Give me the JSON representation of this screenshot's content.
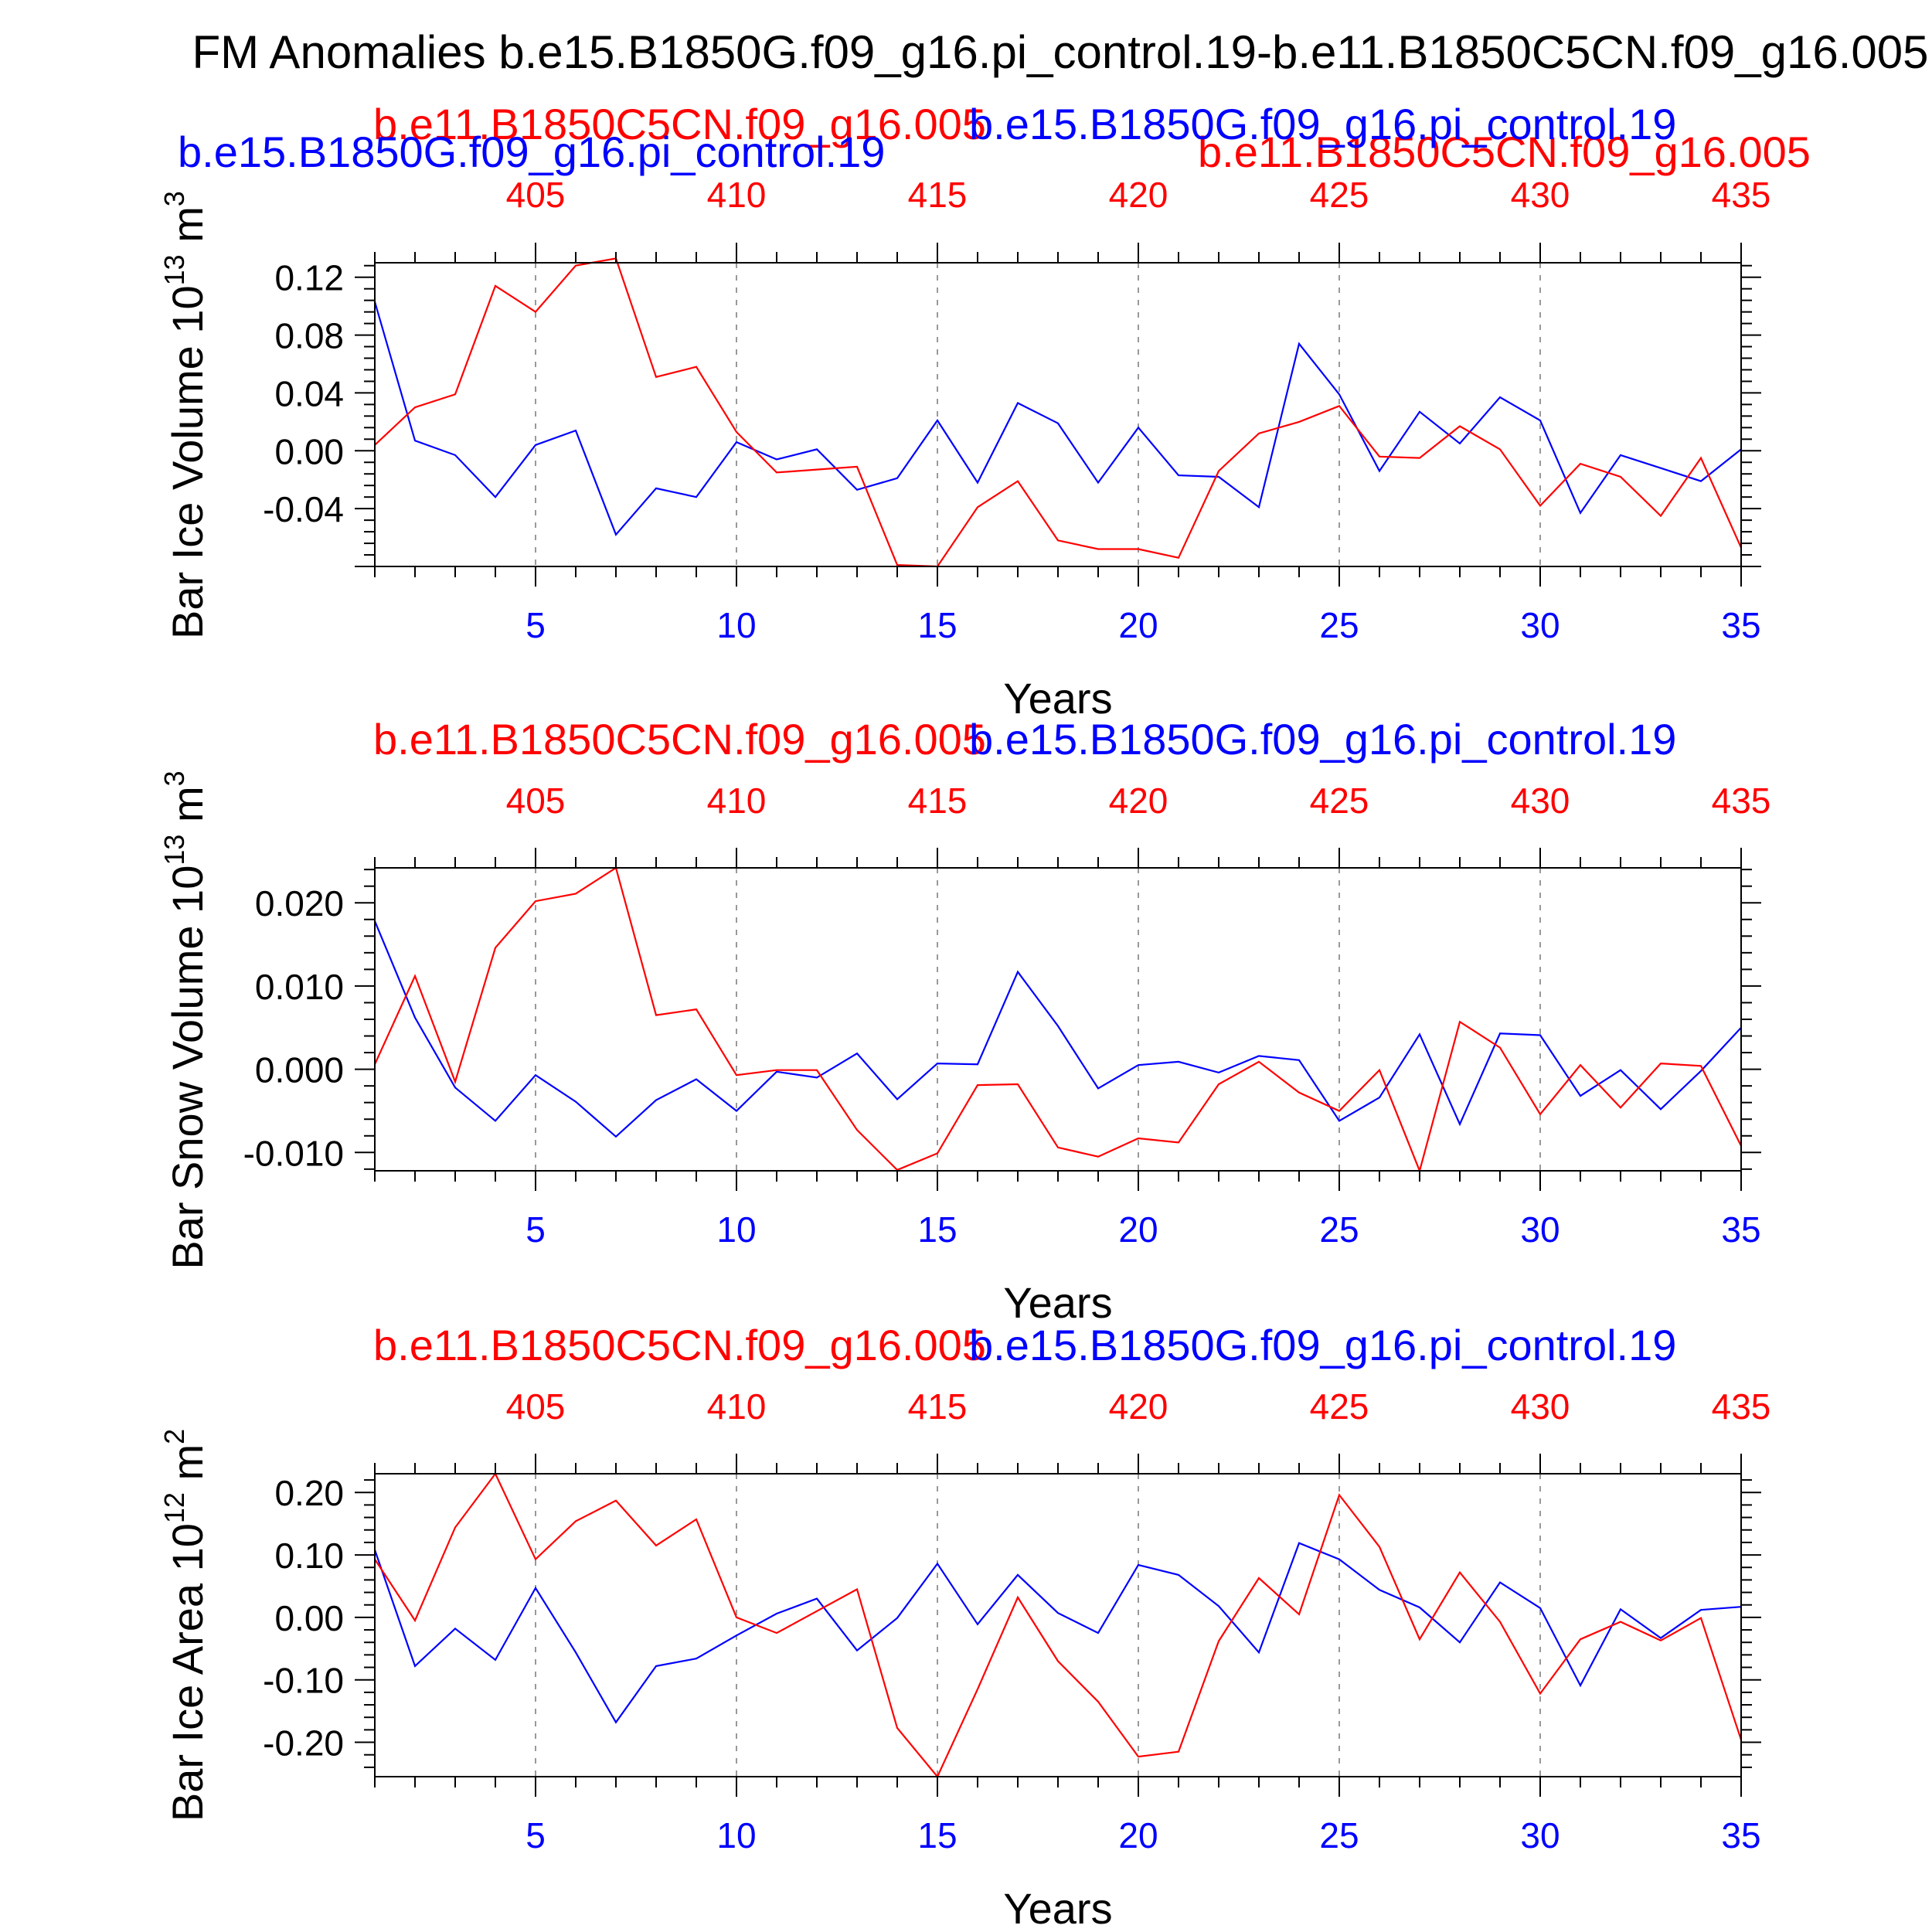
{
  "title": "FM Anomalies b.e15.B1850G.f09_g16.pi_control.19-b.e11.B1850C5CN.f09_g16.005",
  "colors": {
    "blue": "#0000ff",
    "red": "#ff0000",
    "axis": "#000000",
    "grid": "#999999"
  },
  "first_panel_extra_label": "b.e11.B1850C5CN.f09_g16.005",
  "chart_data": [
    {
      "type": "line",
      "red_label": "b.e11.B1850C5CN.f09_g16.005",
      "blue_label": "b.e15.B1850G.f09_g16.pi_control.19",
      "ylabel": "Bar Ice Volume 10",
      "yunit_exp": "13",
      "yunit_tail": " m",
      "yunit_sup": "3",
      "xlabel": "Years",
      "xlim": [
        1,
        35
      ],
      "ylim": [
        -0.08,
        0.13
      ],
      "yticks": [
        -0.04,
        0.0,
        0.04,
        0.08,
        0.12
      ],
      "ytick_labels": [
        "-0.04",
        "0.00",
        "0.04",
        "0.08",
        "0.12"
      ],
      "xticks": [
        5,
        10,
        15,
        20,
        25,
        30,
        35
      ],
      "xtick_labels": [
        "5",
        "10",
        "15",
        "20",
        "25",
        "30",
        "35"
      ],
      "top_ticks": [
        5,
        10,
        15,
        20,
        25,
        30,
        35
      ],
      "top_tick_labels": [
        "405",
        "410",
        "415",
        "420",
        "425",
        "430",
        "435"
      ],
      "grid_x": [
        5,
        10,
        15,
        20,
        25,
        30
      ],
      "series": [
        {
          "name": "b.e15.B1850G.f09_g16.pi_control.19",
          "color": "#0000ff",
          "x": [
            1,
            2,
            3,
            4,
            5,
            6,
            7,
            8,
            9,
            10,
            11,
            12,
            13,
            14,
            15,
            16,
            17,
            18,
            19,
            20,
            21,
            22,
            23,
            24,
            25,
            26,
            27,
            28,
            29,
            30,
            31,
            32,
            33,
            34,
            35
          ],
          "y": [
            0.103,
            0.007,
            -0.003,
            -0.032,
            0.004,
            0.014,
            -0.058,
            -0.026,
            -0.032,
            0.006,
            -0.006,
            0.001,
            -0.027,
            -0.019,
            0.021,
            -0.022,
            0.033,
            0.019,
            -0.022,
            0.016,
            -0.017,
            -0.018,
            -0.039,
            0.074,
            0.039,
            -0.014,
            0.027,
            0.005,
            0.037,
            0.021,
            -0.043,
            -0.003,
            -0.012,
            -0.021,
            0.001
          ]
        },
        {
          "name": "b.e11.B1850C5CN.f09_g16.005",
          "color": "#ff0000",
          "x": [
            1,
            2,
            3,
            4,
            5,
            6,
            7,
            8,
            9,
            10,
            11,
            12,
            13,
            14,
            15,
            16,
            17,
            18,
            19,
            20,
            21,
            22,
            23,
            24,
            25,
            26,
            27,
            28,
            29,
            30,
            31,
            32,
            33,
            34,
            35
          ],
          "y": [
            0.004,
            0.03,
            0.039,
            0.114,
            0.096,
            0.128,
            0.133,
            0.051,
            0.058,
            0.013,
            -0.015,
            -0.013,
            -0.011,
            -0.079,
            -0.08,
            -0.039,
            -0.021,
            -0.062,
            -0.068,
            -0.068,
            -0.074,
            -0.014,
            0.012,
            0.02,
            0.031,
            -0.004,
            -0.005,
            0.017,
            0.001,
            -0.038,
            -0.009,
            -0.018,
            -0.045,
            -0.005,
            -0.067
          ]
        }
      ]
    },
    {
      "type": "line",
      "red_label": "b.e11.B1850C5CN.f09_g16.005",
      "blue_label": "b.e15.B1850G.f09_g16.pi_control.19",
      "ylabel": "Bar Snow Volume 10",
      "yunit_exp": "13",
      "yunit_tail": " m",
      "yunit_sup": "3",
      "xlabel": "Years",
      "xlim": [
        1,
        35
      ],
      "ylim": [
        -0.0122,
        0.0242
      ],
      "yticks": [
        -0.01,
        0.0,
        0.01,
        0.02
      ],
      "ytick_labels": [
        "-0.010",
        "0.000",
        "0.010",
        "0.020"
      ],
      "xticks": [
        5,
        10,
        15,
        20,
        25,
        30,
        35
      ],
      "xtick_labels": [
        "5",
        "10",
        "15",
        "20",
        "25",
        "30",
        "35"
      ],
      "top_ticks": [
        5,
        10,
        15,
        20,
        25,
        30,
        35
      ],
      "top_tick_labels": [
        "405",
        "410",
        "415",
        "420",
        "425",
        "430",
        "435"
      ],
      "grid_x": [
        5,
        10,
        15,
        20,
        25,
        30
      ],
      "series": [
        {
          "name": "b.e15.B1850G.f09_g16.pi_control.19",
          "color": "#0000ff",
          "x": [
            1,
            2,
            3,
            4,
            5,
            6,
            7,
            8,
            9,
            10,
            11,
            12,
            13,
            14,
            15,
            16,
            17,
            18,
            19,
            20,
            21,
            22,
            23,
            24,
            25,
            26,
            27,
            28,
            29,
            30,
            31,
            32,
            33,
            34,
            35
          ],
          "y": [
            0.0178,
            0.0062,
            -0.0022,
            -0.0062,
            -0.0007,
            -0.0039,
            -0.0081,
            -0.0037,
            -0.0012,
            -0.005,
            -0.0003,
            -0.001,
            0.0019,
            -0.0036,
            0.0007,
            0.0006,
            0.0117,
            0.0052,
            -0.0023,
            0.0005,
            0.0009,
            -0.0004,
            0.0016,
            0.0011,
            -0.0062,
            -0.0034,
            0.0042,
            -0.0066,
            0.0043,
            0.0041,
            -0.0032,
            -0.0001,
            -0.0048,
            -0.0002,
            0.005
          ]
        },
        {
          "name": "b.e11.B1850C5CN.f09_g16.005",
          "color": "#ff0000",
          "x": [
            1,
            2,
            3,
            4,
            5,
            6,
            7,
            8,
            9,
            10,
            11,
            12,
            13,
            14,
            15,
            16,
            17,
            18,
            19,
            20,
            21,
            22,
            23,
            24,
            25,
            26,
            27,
            28,
            29,
            30,
            31,
            32,
            33,
            34,
            35
          ],
          "y": [
            0.0006,
            0.0112,
            -0.0015,
            0.0146,
            0.0202,
            0.0211,
            0.0242,
            0.0065,
            0.0072,
            -0.0007,
            -0.0001,
            -0.0001,
            -0.0073,
            -0.0121,
            -0.0101,
            -0.0019,
            -0.0018,
            -0.0094,
            -0.0105,
            -0.0083,
            -0.0088,
            -0.0018,
            0.0009,
            -0.0028,
            -0.005,
            -0.0001,
            -0.0122,
            0.0057,
            0.0026,
            -0.0054,
            0.0005,
            -0.0046,
            0.0007,
            0.0004,
            -0.0092
          ]
        }
      ]
    },
    {
      "type": "line",
      "red_label": "b.e11.B1850C5CN.f09_g16.005",
      "blue_label": "b.e15.B1850G.f09_g16.pi_control.19",
      "ylabel": "Bar Ice Area 10",
      "yunit_exp": "12",
      "yunit_tail": " m",
      "yunit_sup": "2",
      "xlabel": "Years",
      "xlim": [
        1,
        35
      ],
      "ylim": [
        -0.255,
        0.23
      ],
      "yticks": [
        -0.2,
        -0.1,
        0.0,
        0.1,
        0.2
      ],
      "ytick_labels": [
        "-0.20",
        "-0.10",
        "0.00",
        "0.10",
        "0.20"
      ],
      "xticks": [
        5,
        10,
        15,
        20,
        25,
        30,
        35
      ],
      "xtick_labels": [
        "5",
        "10",
        "15",
        "20",
        "25",
        "30",
        "35"
      ],
      "top_ticks": [
        5,
        10,
        15,
        20,
        25,
        30,
        35
      ],
      "top_tick_labels": [
        "405",
        "410",
        "415",
        "420",
        "425",
        "430",
        "435"
      ],
      "grid_x": [
        5,
        10,
        15,
        20,
        25,
        30
      ],
      "series": [
        {
          "name": "b.e15.B1850G.f09_g16.pi_control.19",
          "color": "#0000ff",
          "x": [
            1,
            2,
            3,
            4,
            5,
            6,
            7,
            8,
            9,
            10,
            11,
            12,
            13,
            14,
            15,
            16,
            17,
            18,
            19,
            20,
            21,
            22,
            23,
            24,
            25,
            26,
            27,
            28,
            29,
            30,
            31,
            32,
            33,
            34,
            35
          ],
          "y": [
            0.108,
            -0.078,
            -0.018,
            -0.068,
            0.047,
            -0.056,
            -0.168,
            -0.078,
            -0.066,
            -0.029,
            0.006,
            0.03,
            -0.053,
            -0.001,
            0.086,
            -0.011,
            0.068,
            0.007,
            -0.025,
            0.084,
            0.068,
            0.018,
            -0.056,
            0.119,
            0.093,
            0.044,
            0.016,
            -0.04,
            0.056,
            0.015,
            -0.109,
            0.013,
            -0.033,
            0.012,
            0.017
          ]
        },
        {
          "name": "b.e11.B1850C5CN.f09_g16.005",
          "color": "#ff0000",
          "x": [
            1,
            2,
            3,
            4,
            5,
            6,
            7,
            8,
            9,
            10,
            11,
            12,
            13,
            14,
            15,
            16,
            17,
            18,
            19,
            20,
            21,
            22,
            23,
            24,
            25,
            26,
            27,
            28,
            29,
            30,
            31,
            32,
            33,
            34,
            35
          ],
          "y": [
            0.093,
            -0.005,
            0.144,
            0.23,
            0.093,
            0.154,
            0.187,
            0.115,
            0.157,
            0.0,
            -0.025,
            0.01,
            0.045,
            -0.177,
            -0.255,
            -0.115,
            0.032,
            -0.07,
            -0.135,
            -0.223,
            -0.215,
            -0.038,
            0.063,
            0.005,
            0.196,
            0.113,
            -0.035,
            0.072,
            -0.007,
            -0.122,
            -0.035,
            -0.007,
            -0.037,
            -0.001,
            -0.196
          ]
        }
      ]
    }
  ]
}
